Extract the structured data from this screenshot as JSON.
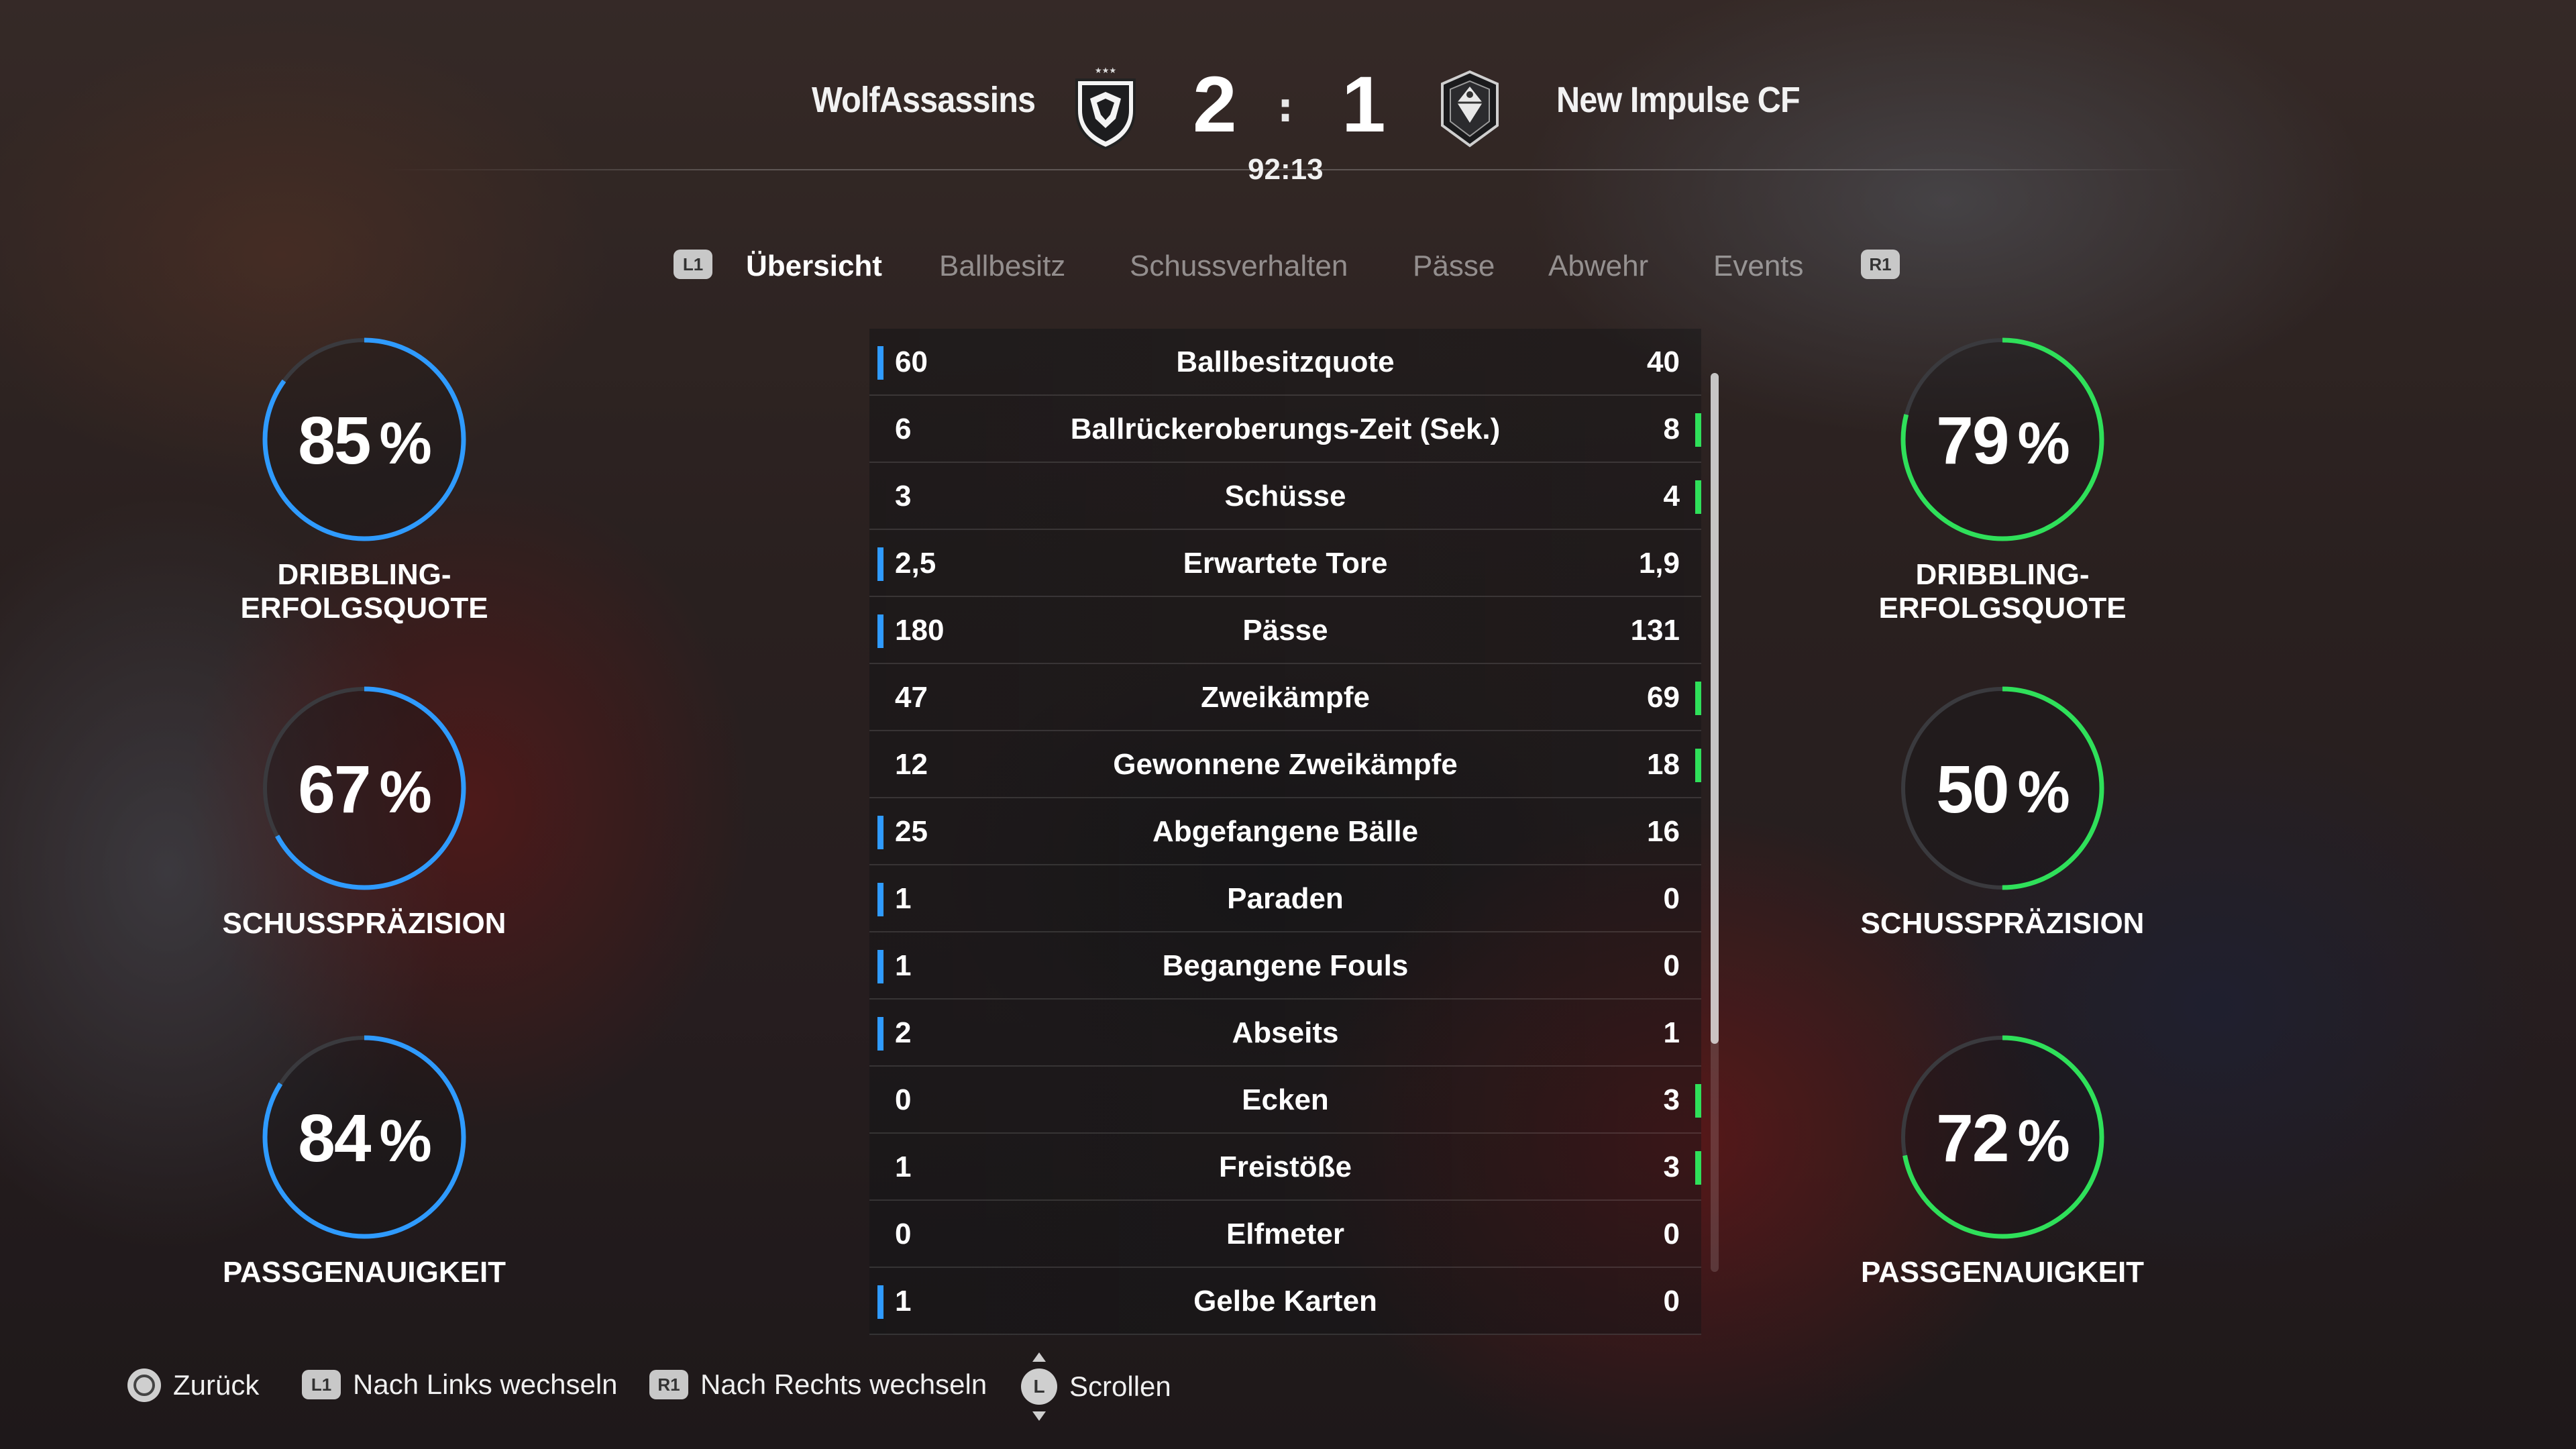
{
  "match": {
    "home_team": "WolfAssassins",
    "away_team": "New Impulse CF",
    "home_score": "2",
    "away_score": "1",
    "score_separator": ":",
    "clock": "92:13"
  },
  "tabs": {
    "prev_button": "L1",
    "next_button": "R1",
    "items": [
      {
        "label": "Übersicht",
        "active": true
      },
      {
        "label": "Ballbesitz",
        "active": false
      },
      {
        "label": "Schussverhalten",
        "active": false
      },
      {
        "label": "Pässe",
        "active": false
      },
      {
        "label": "Abwehr",
        "active": false
      },
      {
        "label": "Events",
        "active": false
      }
    ]
  },
  "colors": {
    "home_accent": "#2f9bff",
    "away_accent": "#2fe05a",
    "ring_track": "#3a3a3e"
  },
  "stats": [
    {
      "label": "Ballbesitzquote",
      "home": "60",
      "away": "40",
      "leader": "home"
    },
    {
      "label": "Ballrückeroberungs-Zeit (Sek.)",
      "home": "6",
      "away": "8",
      "leader": "away"
    },
    {
      "label": "Schüsse",
      "home": "3",
      "away": "4",
      "leader": "away"
    },
    {
      "label": "Erwartete Tore",
      "home": "2,5",
      "away": "1,9",
      "leader": "home"
    },
    {
      "label": "Pässe",
      "home": "180",
      "away": "131",
      "leader": "home"
    },
    {
      "label": "Zweikämpfe",
      "home": "47",
      "away": "69",
      "leader": "away"
    },
    {
      "label": "Gewonnene Zweikämpfe",
      "home": "12",
      "away": "18",
      "leader": "away"
    },
    {
      "label": "Abgefangene Bälle",
      "home": "25",
      "away": "16",
      "leader": "home"
    },
    {
      "label": "Paraden",
      "home": "1",
      "away": "0",
      "leader": "home"
    },
    {
      "label": "Begangene Fouls",
      "home": "1",
      "away": "0",
      "leader": "home"
    },
    {
      "label": "Abseits",
      "home": "2",
      "away": "1",
      "leader": "home"
    },
    {
      "label": "Ecken",
      "home": "0",
      "away": "3",
      "leader": "away"
    },
    {
      "label": "Freistöße",
      "home": "1",
      "away": "3",
      "leader": "away"
    },
    {
      "label": "Elfmeter",
      "home": "0",
      "away": "0",
      "leader": "none"
    },
    {
      "label": "Gelbe Karten",
      "home": "1",
      "away": "0",
      "leader": "home"
    }
  ],
  "rings": {
    "home": [
      {
        "label": "DRIBBLING-ERFOLGSQUOTE",
        "value": "85",
        "unit": "%",
        "percent": 85
      },
      {
        "label": "SCHUSSPRÄZISION",
        "value": "67",
        "unit": "%",
        "percent": 67
      },
      {
        "label": "PASSGENAUIGKEIT",
        "value": "84",
        "unit": "%",
        "percent": 84
      }
    ],
    "away": [
      {
        "label": "DRIBBLING-ERFOLGSQUOTE",
        "value": "79",
        "unit": "%",
        "percent": 79
      },
      {
        "label": "SCHUSSPRÄZISION",
        "value": "50",
        "unit": "%",
        "percent": 50
      },
      {
        "label": "PASSGENAUIGKEIT",
        "value": "72",
        "unit": "%",
        "percent": 72
      }
    ]
  },
  "footer": {
    "back": "Zurück",
    "prev_button": "L1",
    "prev": "Nach Links wechseln",
    "next_button": "R1",
    "next": "Nach Rechts wechseln",
    "scroll_button": "L",
    "scroll": "Scrollen"
  }
}
